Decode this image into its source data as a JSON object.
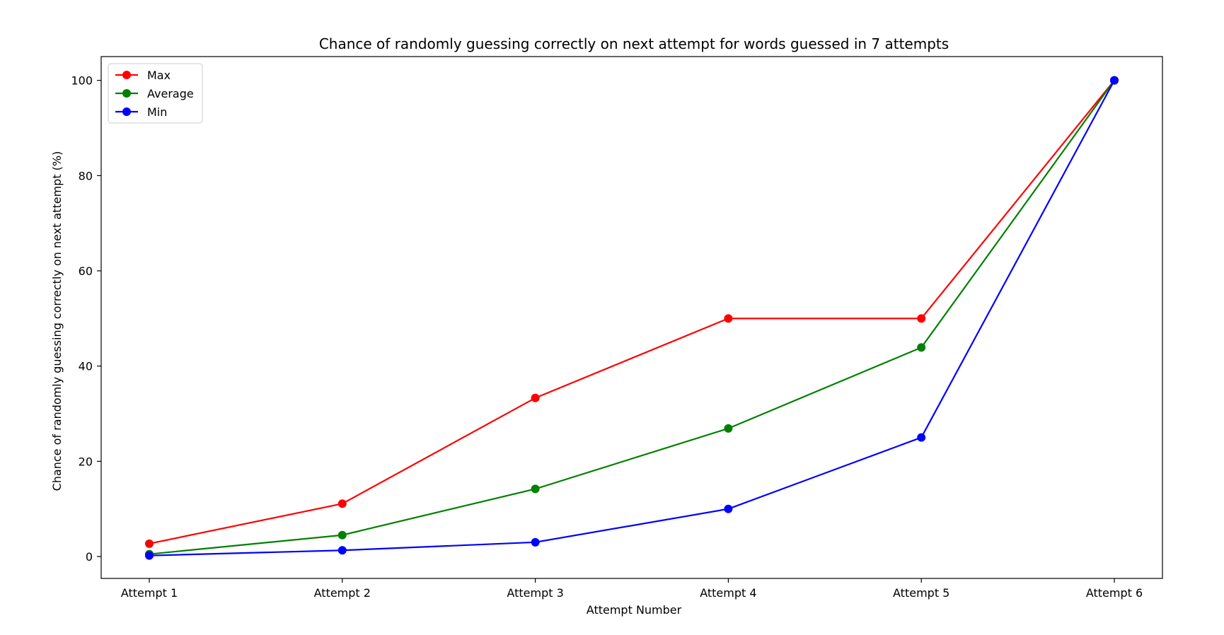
{
  "chart_data": {
    "type": "line",
    "title": "Chance of randomly guessing correctly on next attempt for words guessed in 7 attempts",
    "xlabel": "Attempt Number",
    "ylabel": "Chance of randomly guessing correctly on next attempt (%)",
    "categories": [
      "Attempt 1",
      "Attempt 2",
      "Attempt 3",
      "Attempt 4",
      "Attempt 5",
      "Attempt 6"
    ],
    "ylim": [
      -4.6,
      105
    ],
    "yticks": [
      0,
      20,
      40,
      60,
      80,
      100
    ],
    "grid": false,
    "legend_position": "top-left",
    "marker": "circle",
    "series": [
      {
        "name": "Max",
        "color": "#ff0000",
        "values": [
          2.7,
          11.1,
          33.3,
          50.0,
          50.0,
          100.0
        ]
      },
      {
        "name": "Average",
        "color": "#008000",
        "values": [
          0.5,
          4.5,
          14.2,
          26.9,
          43.9,
          100.0
        ]
      },
      {
        "name": "Min",
        "color": "#0000ff",
        "values": [
          0.2,
          1.3,
          3.0,
          10.0,
          25.0,
          100.0
        ]
      }
    ]
  }
}
